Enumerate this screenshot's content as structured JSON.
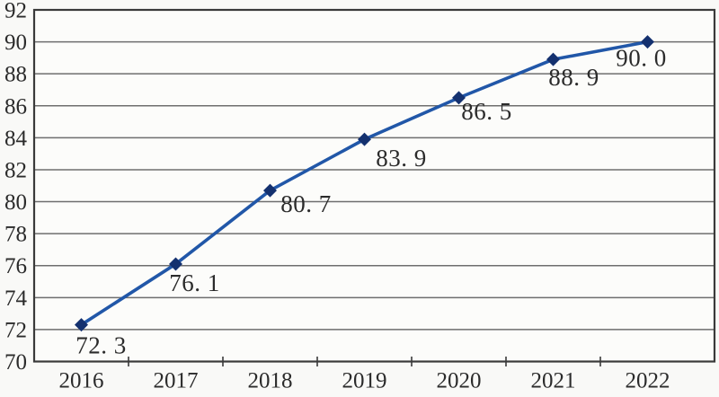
{
  "chart_data": {
    "type": "line",
    "title": "",
    "xlabel": "",
    "ylabel": "",
    "categories": [
      "2016",
      "2017",
      "2018",
      "2019",
      "2020",
      "2021",
      "2022"
    ],
    "series": [
      {
        "name": "series-1",
        "values": [
          72.3,
          76.1,
          80.7,
          83.9,
          86.5,
          88.9,
          90.0
        ],
        "point_labels": [
          "72. 3",
          "76. 1",
          "80. 7",
          "83. 9",
          "86. 5",
          "88. 9",
          "90. 0"
        ],
        "label_offsets": [
          [
            22,
            23
          ],
          [
            21,
            21
          ],
          [
            40,
            15
          ],
          [
            41,
            21
          ],
          [
            31,
            15
          ],
          [
            23,
            20
          ],
          [
            -7,
            18
          ]
        ]
      }
    ],
    "ylim": [
      70,
      92
    ],
    "ytick_step": 2,
    "ytick_labels": [
      "70",
      "72",
      "74",
      "76",
      "78",
      "80",
      "82",
      "84",
      "86",
      "88",
      "90",
      "92"
    ],
    "grid": "horizontal",
    "legend": "none",
    "marker_shape": "diamond",
    "colors": {
      "line": "#2157a8",
      "marker": "#14316f",
      "grid": "#6e6e6e",
      "border": "#3a3a3a",
      "text": "#2b2b2b",
      "background": "#f9f9f7",
      "plot_background": "#fcfcfa"
    }
  }
}
